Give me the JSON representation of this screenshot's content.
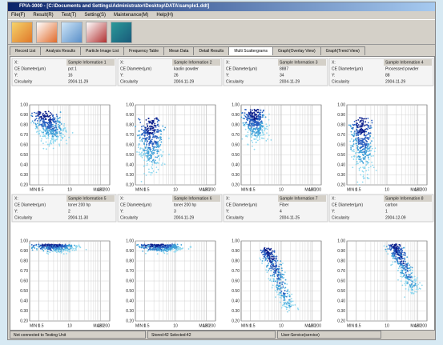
{
  "window": {
    "title": "FPIA-3000 - [C:\\Documents and Settings\\Administrator\\Desktop\\DATA\\sample1.ddt]",
    "menu": [
      "File(F)",
      "Result(R)",
      "Test(T)",
      "Setting(S)",
      "Maintenance(M)",
      "Help(H)"
    ],
    "tabs": [
      "Record List",
      "Analysis Results",
      "Particle Image List",
      "Frequency Table",
      "Mean Data",
      "Detail Results",
      "Multi Scattergrams",
      "Graph(Overlay View)",
      "Graph(Trend View)"
    ],
    "active_tab": "Multi Scattergrams"
  },
  "plot_axes": {
    "x_label": "X:",
    "x_axis": "CE Diameter(µm)",
    "y_label": "Y:",
    "y_axis": "Circularity",
    "yticks": [
      "1.00",
      "0.90",
      "0.80",
      "0.70",
      "0.60",
      "0.50",
      "0.40",
      "0.30",
      "0.20"
    ],
    "xticks": [
      "MIN 0.5",
      "1",
      "10",
      "100",
      "MAX 200"
    ]
  },
  "panels": [
    {
      "sample_label": "Sample Information 1",
      "sample_value": "pct 1",
      "number": "16",
      "date": "2004-11-29"
    },
    {
      "sample_label": "Sample Information 2",
      "sample_value": "kaolin powder",
      "number": "26",
      "date": "2004-11-29"
    },
    {
      "sample_label": "Sample Information 3",
      "sample_value": "8887",
      "number": "34",
      "date": "2004-11-29"
    },
    {
      "sample_label": "Sample Information 4",
      "sample_value": "Processed powder",
      "number": "88",
      "date": "2004-11-29"
    },
    {
      "sample_label": "Sample Information 5",
      "sample_value": "toner 200 hp",
      "number": "2",
      "date": "2004-11-30"
    },
    {
      "sample_label": "Sample Information 6",
      "sample_value": "toner 200 hp",
      "number": "3",
      "date": "2004-11-29"
    },
    {
      "sample_label": "Sample Information 7",
      "sample_value": "Fiber",
      "number": "4",
      "date": "2004-11-25"
    },
    {
      "sample_label": "Sample Information 8",
      "sample_value": "carbon",
      "number": "1",
      "date": "2004-12-09"
    }
  ],
  "status": [
    "Not connected to Testing Unit",
    "Stored:42  Selected:42",
    "User:Service(service)"
  ]
}
